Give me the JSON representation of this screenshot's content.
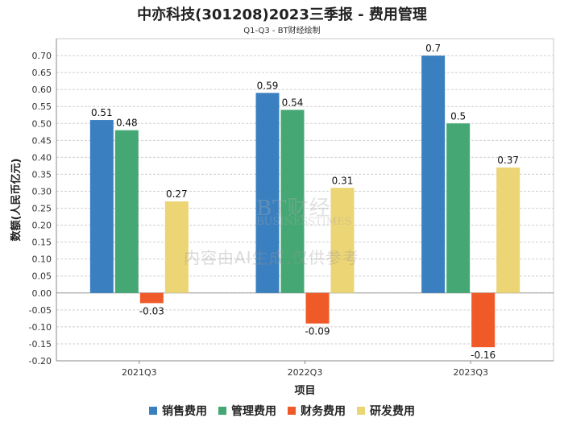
{
  "chart_data": {
    "type": "bar",
    "title": "中亦科技(301208)2023三季报 - 费用管理",
    "subtitle": "Q1-Q3 - BT财经绘制",
    "xlabel": "项目",
    "ylabel": "数额(人民币亿元)",
    "categories": [
      "2021Q3",
      "2022Q3",
      "2023Q3"
    ],
    "ylim": [
      -0.2,
      0.75
    ],
    "yticks": [
      "0.70",
      "0.65",
      "0.60",
      "0.55",
      "0.50",
      "0.45",
      "0.40",
      "0.35",
      "0.30",
      "0.25",
      "0.20",
      "0.15",
      "0.10",
      "0.05",
      "0.00",
      "-0.05",
      "-0.10",
      "-0.15",
      "-0.20"
    ],
    "series": [
      {
        "name": "销售费用",
        "color": "#3a80c0",
        "values": [
          0.51,
          0.59,
          0.7
        ],
        "labels": [
          "0.51",
          "0.59",
          "0.7"
        ]
      },
      {
        "name": "管理费用",
        "color": "#45a874",
        "values": [
          0.48,
          0.54,
          0.5
        ],
        "labels": [
          "0.48",
          "0.54",
          "0.5"
        ]
      },
      {
        "name": "财务费用",
        "color": "#f05a28",
        "values": [
          -0.03,
          -0.09,
          -0.16
        ],
        "labels": [
          "-0.03",
          "-0.09",
          "-0.16"
        ]
      },
      {
        "name": "研发费用",
        "color": "#ecd575",
        "values": [
          0.27,
          0.31,
          0.37
        ],
        "labels": [
          "0.27",
          "0.31",
          "0.37"
        ]
      }
    ],
    "watermark": {
      "brand": "BT财经",
      "brand_en": "BUSINESSTIMES",
      "notice": "内容由AI生成,仅供参考"
    }
  }
}
